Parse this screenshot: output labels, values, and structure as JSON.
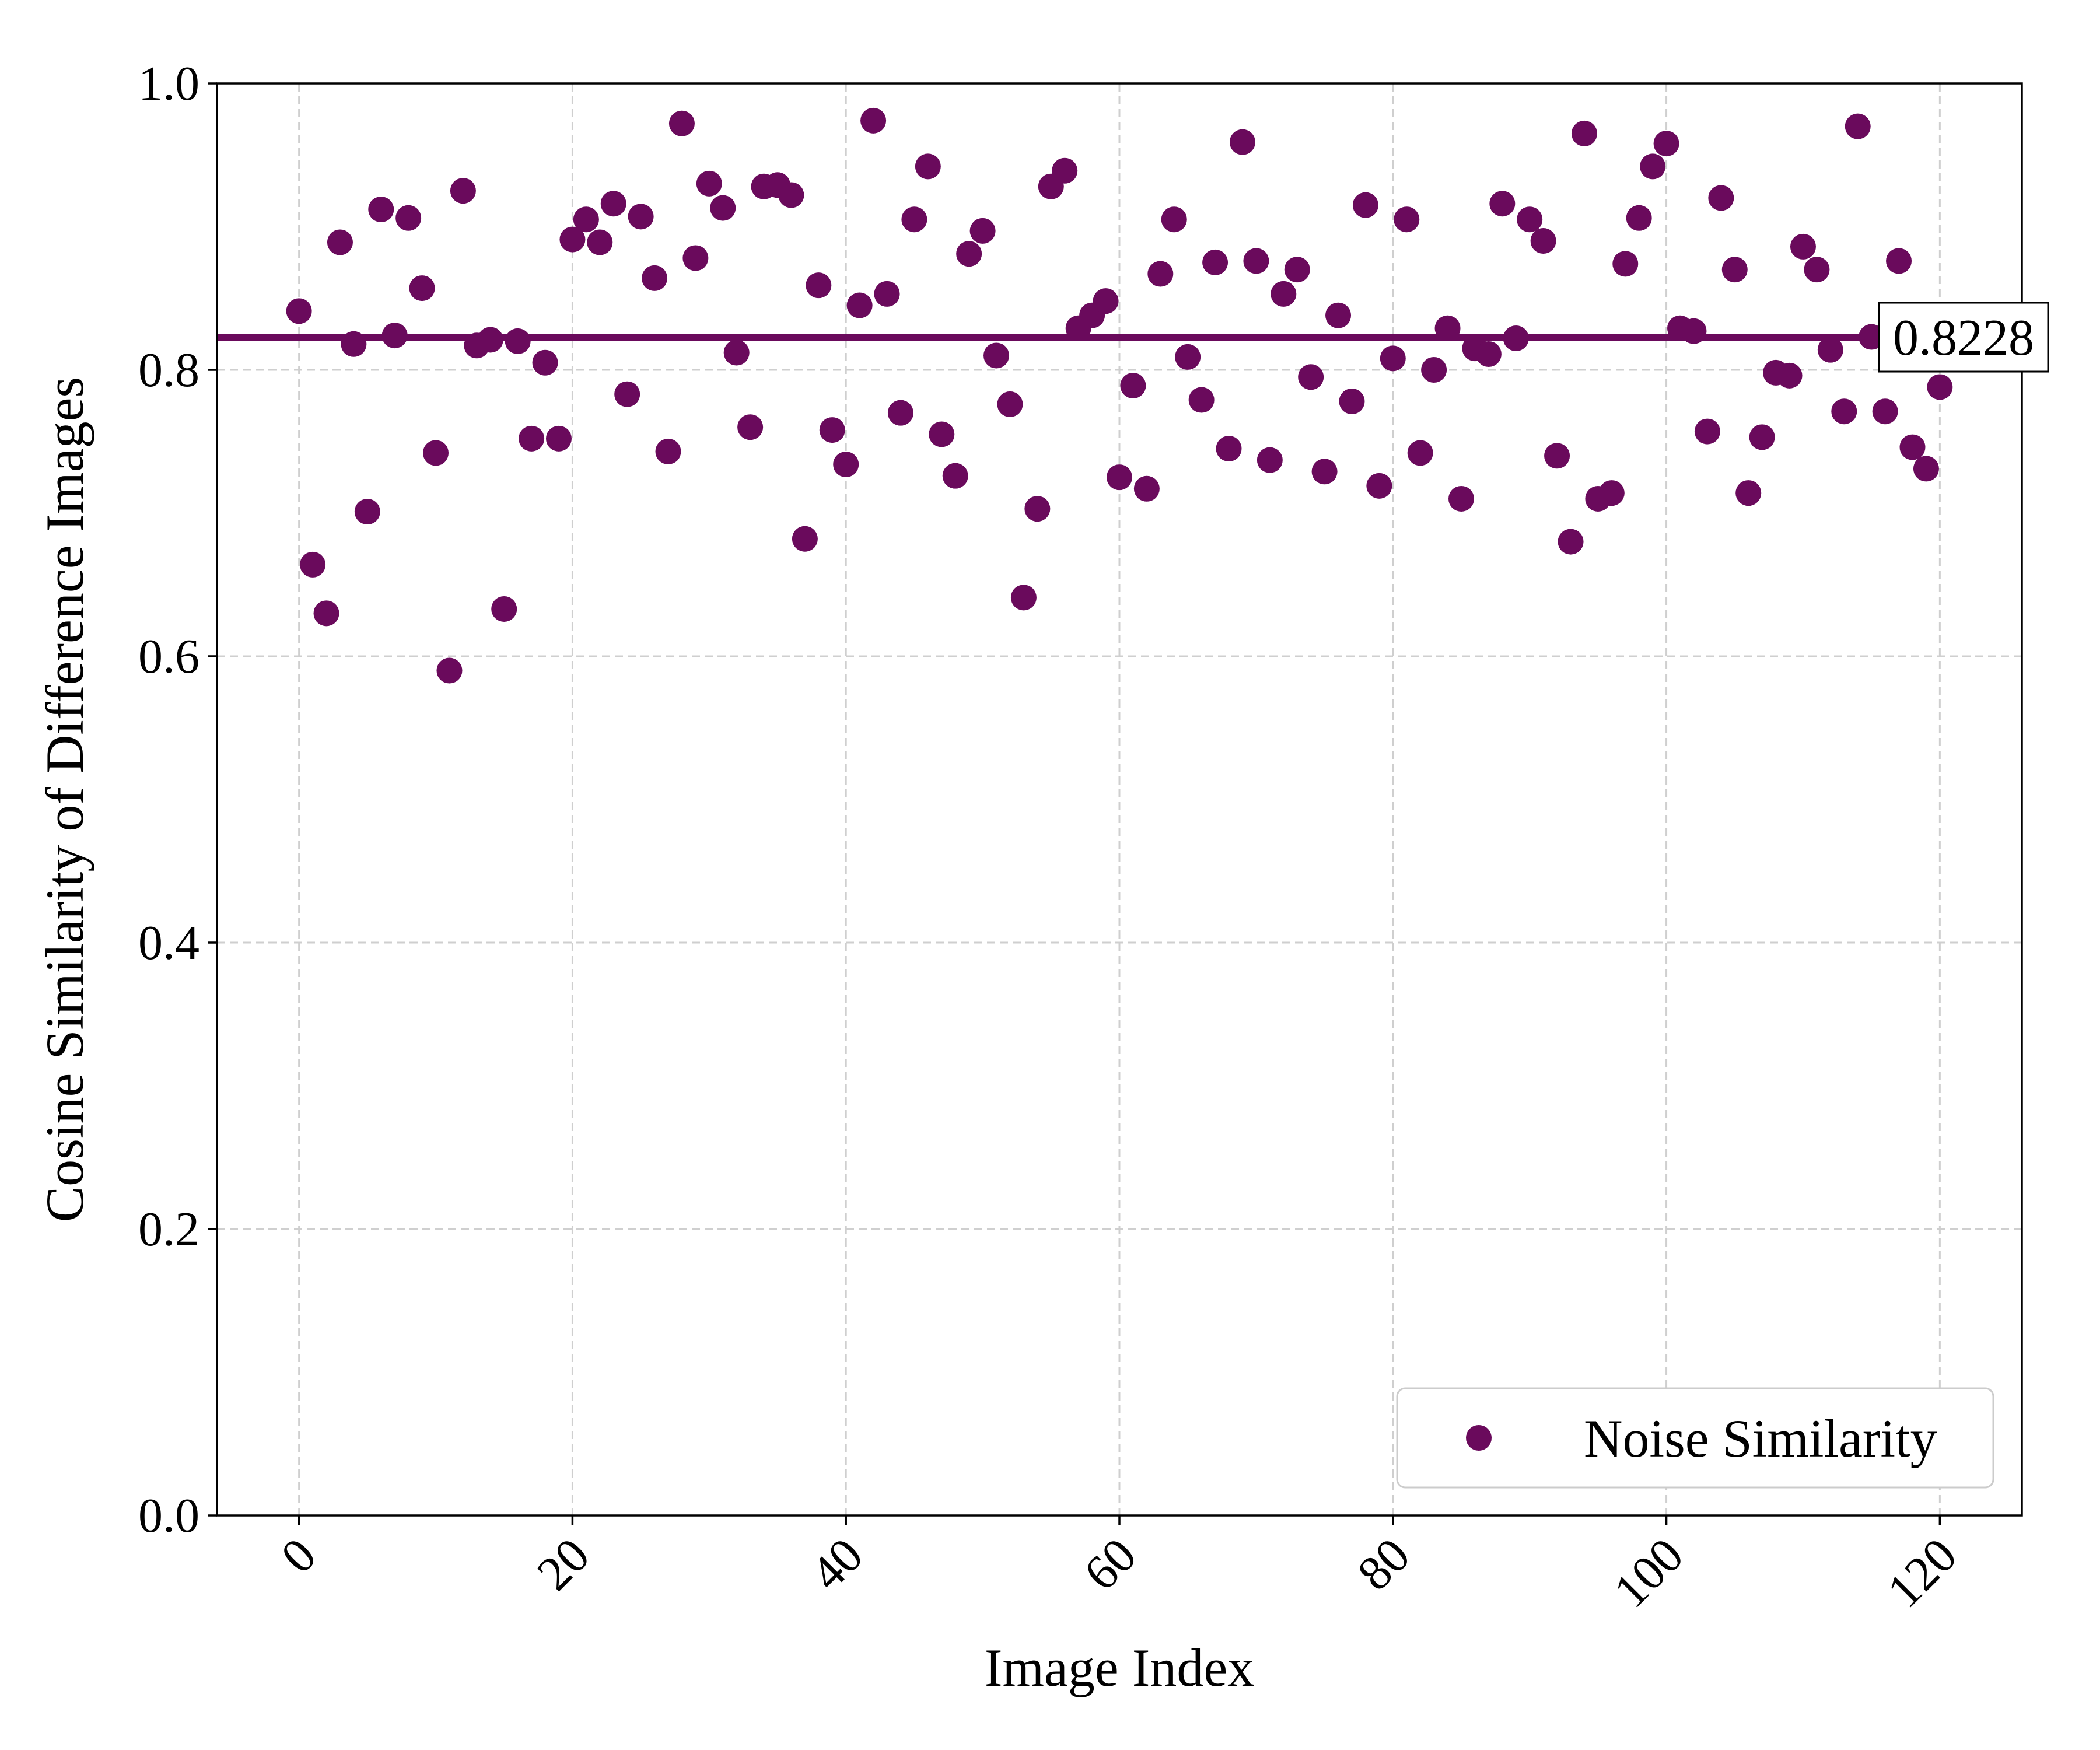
{
  "chart_data": {
    "type": "scatter",
    "xlabel": "Image Index",
    "ylabel": "Cosine Similarity of Difference Images",
    "xlim": [
      -6,
      126
    ],
    "ylim": [
      0.0,
      1.0
    ],
    "x_ticks": [
      0,
      20,
      40,
      60,
      80,
      100,
      120
    ],
    "x_tick_labels": [
      "0",
      "20",
      "40",
      "60",
      "80",
      "100",
      "120"
    ],
    "y_ticks": [
      0.0,
      0.2,
      0.4,
      0.6,
      0.8,
      1.0
    ],
    "y_tick_labels": [
      "0.0",
      "0.2",
      "0.4",
      "0.6",
      "0.8",
      "1.0"
    ],
    "grid": true,
    "legend_position": "bottom-right",
    "series": [
      {
        "name": "Noise Similarity",
        "color": "#6a0a5c",
        "x": [
          0,
          1,
          2,
          3,
          4,
          5,
          6,
          7,
          8,
          9,
          10,
          11,
          12,
          13,
          14,
          15,
          16,
          17,
          18,
          19,
          20,
          21,
          22,
          23,
          24,
          25,
          26,
          27,
          28,
          29,
          30,
          31,
          32,
          33,
          34,
          35,
          36,
          37,
          38,
          39,
          40,
          41,
          42,
          43,
          44,
          45,
          46,
          47,
          48,
          49,
          50,
          51,
          52,
          53,
          54,
          55,
          56,
          57,
          58,
          59,
          60,
          61,
          62,
          63,
          64,
          65,
          66,
          67,
          68,
          69,
          70,
          71,
          72,
          73,
          74,
          75,
          76,
          77,
          78,
          79,
          80,
          81,
          82,
          83,
          84,
          85,
          86,
          87,
          88,
          89,
          90,
          91,
          92,
          93,
          94,
          95,
          96,
          97,
          98,
          99,
          100,
          101,
          102,
          103,
          104,
          105,
          106,
          107,
          108,
          109,
          110,
          111,
          112,
          113,
          114,
          115,
          116,
          117,
          118,
          119,
          120
        ],
        "y": [
          0.841,
          0.664,
          0.63,
          0.889,
          0.818,
          0.701,
          0.912,
          0.824,
          0.906,
          0.857,
          0.742,
          0.59,
          0.925,
          0.817,
          0.821,
          0.633,
          0.82,
          0.752,
          0.805,
          0.752,
          0.891,
          0.905,
          0.889,
          0.916,
          0.783,
          0.907,
          0.864,
          0.743,
          0.972,
          0.878,
          0.93,
          0.913,
          0.812,
          0.76,
          0.928,
          0.929,
          0.922,
          0.682,
          0.859,
          0.758,
          0.734,
          0.845,
          0.974,
          0.853,
          0.77,
          0.905,
          0.942,
          0.755,
          0.726,
          0.881,
          0.897,
          0.81,
          0.776,
          0.641,
          0.703,
          0.928,
          0.939,
          0.829,
          0.838,
          0.848,
          0.725,
          0.789,
          0.717,
          0.867,
          0.905,
          0.809,
          0.779,
          0.875,
          0.745,
          0.959,
          0.876,
          0.737,
          0.853,
          0.87,
          0.795,
          0.729,
          0.838,
          0.778,
          0.915,
          0.719,
          0.808,
          0.905,
          0.742,
          0.8,
          0.829,
          0.71,
          0.815,
          0.811,
          0.916,
          0.822,
          0.905,
          0.89,
          0.74,
          0.68,
          0.965,
          0.71,
          0.714,
          0.874,
          0.906,
          0.942,
          0.958,
          0.829,
          0.827,
          0.757,
          0.92,
          0.87,
          0.714,
          0.753,
          0.798,
          0.796,
          0.886,
          0.87,
          0.814,
          0.771,
          0.97,
          0.823,
          0.771,
          0.876,
          0.746,
          0.731,
          0.788
        ]
      }
    ],
    "mean_line": {
      "value": 0.8228,
      "label": "0.8228",
      "color": "#6a0a5c"
    }
  }
}
